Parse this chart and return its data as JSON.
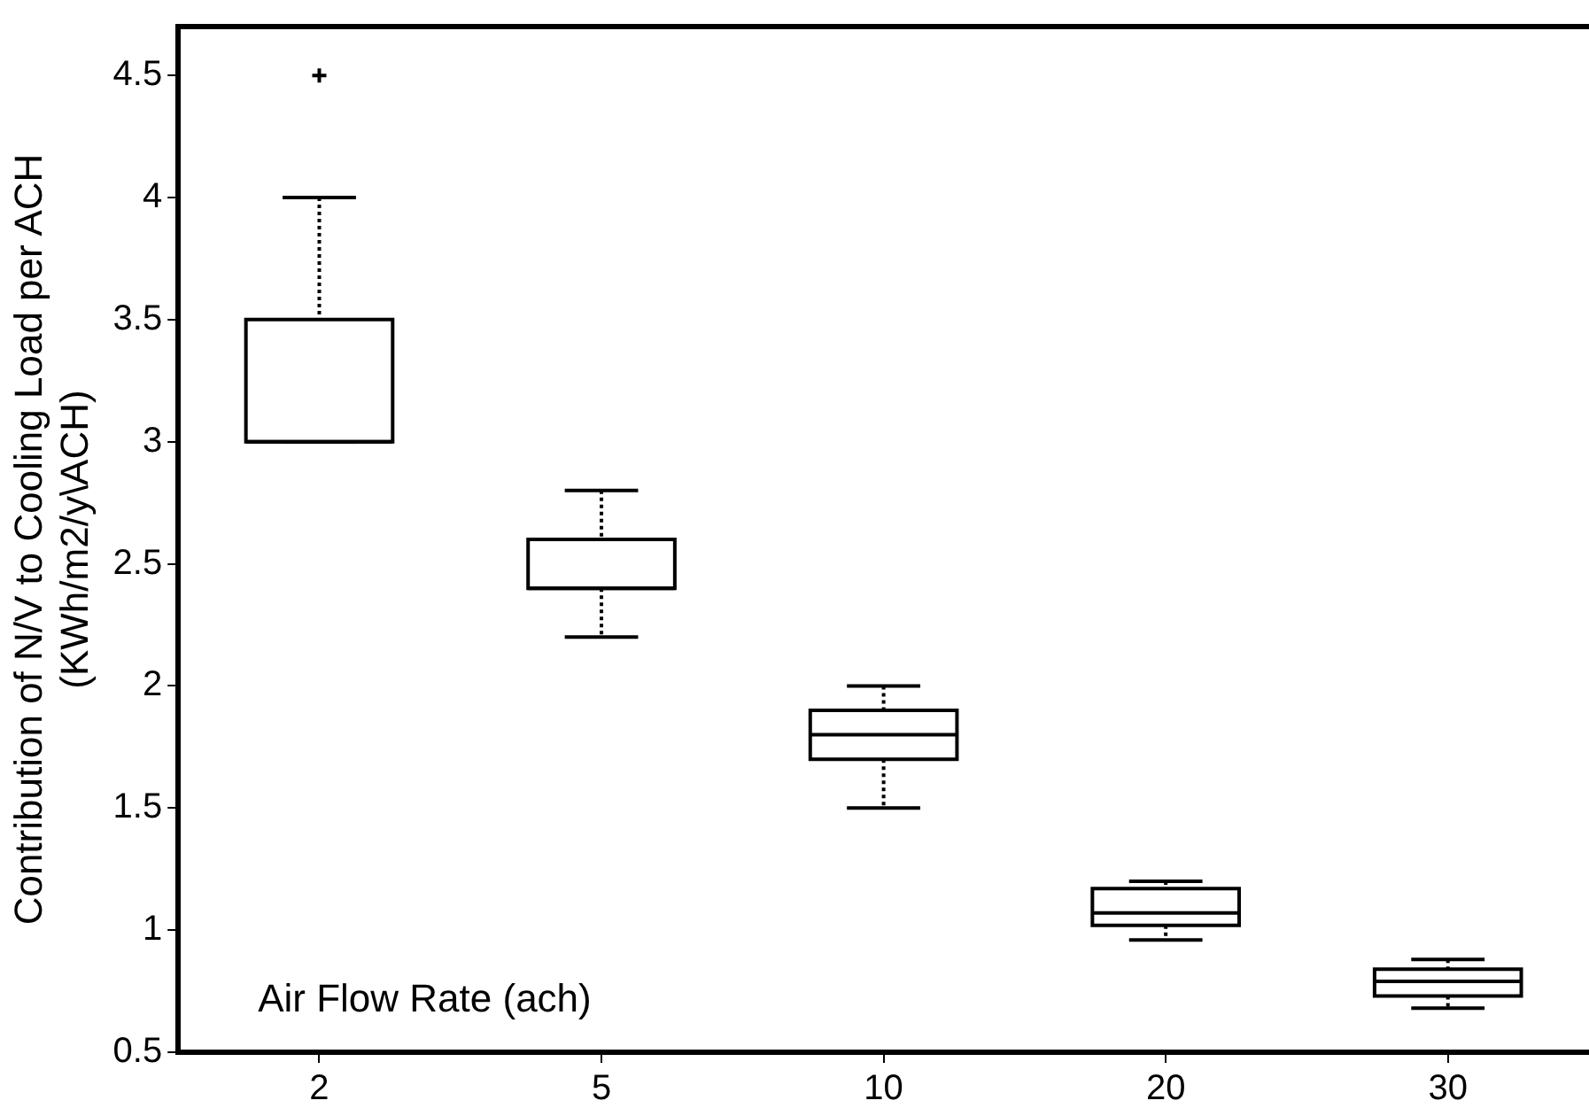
{
  "chart_data": {
    "type": "box",
    "xlabel": "Air Flow Rate (ach)",
    "ylabel": "Contribution of N/V to Cooling Load per ACH\n(KWh/m2/y\\ACH)",
    "categories": [
      "2",
      "5",
      "10",
      "20",
      "30"
    ],
    "boxes": [
      {
        "low": 3.0,
        "q1": 3.0,
        "median": 3.0,
        "q3": 3.5,
        "high": 4.0,
        "outliers": [
          4.5
        ]
      },
      {
        "low": 2.2,
        "q1": 2.4,
        "median": 2.4,
        "q3": 2.6,
        "high": 2.8
      },
      {
        "low": 1.5,
        "q1": 1.7,
        "median": 1.8,
        "q3": 1.9,
        "high": 2.0
      },
      {
        "low": 0.96,
        "q1": 1.02,
        "median": 1.07,
        "q3": 1.17,
        "high": 1.2
      },
      {
        "low": 0.68,
        "q1": 0.73,
        "median": 0.79,
        "q3": 0.84,
        "high": 0.88
      }
    ],
    "ylim": [
      0.5,
      4.7
    ],
    "yticks": [
      0.5,
      1,
      1.5,
      2,
      2.5,
      3,
      3.5,
      4,
      4.5
    ]
  }
}
